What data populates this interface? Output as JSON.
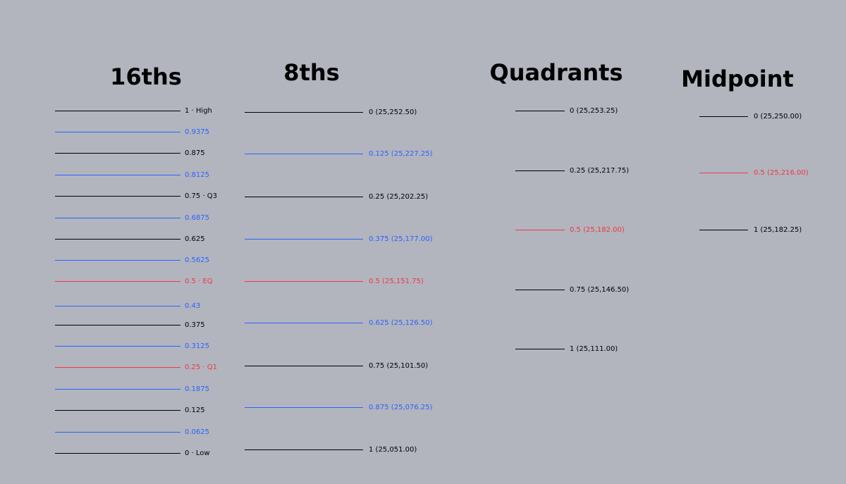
{
  "colors": {
    "background": "#b2b5be",
    "black": "#000000",
    "blue": "#2962ff",
    "red": "#f23645"
  },
  "groups": [
    {
      "id": "16ths",
      "title": "16ths",
      "levels": [
        {
          "label": "1 · High",
          "color": "black"
        },
        {
          "label": "0.9375",
          "color": "blue"
        },
        {
          "label": "0.875",
          "color": "black"
        },
        {
          "label": "0.8125",
          "color": "blue"
        },
        {
          "label": "0.75 · Q3",
          "color": "black"
        },
        {
          "label": "0.6875",
          "color": "blue"
        },
        {
          "label": "0.625",
          "color": "black"
        },
        {
          "label": "0.5625",
          "color": "blue"
        },
        {
          "label": "0.5 · EQ",
          "color": "red"
        },
        {
          "label": "0.43",
          "color": "blue"
        },
        {
          "label": "0.375",
          "color": "black"
        },
        {
          "label": "0.3125",
          "color": "blue"
        },
        {
          "label": "0.25 · Q1",
          "color": "red"
        },
        {
          "label": "0.1875",
          "color": "blue"
        },
        {
          "label": "0.125",
          "color": "black"
        },
        {
          "label": "0.0625",
          "color": "blue"
        },
        {
          "label": "0 · Low",
          "color": "black"
        }
      ]
    },
    {
      "id": "8ths",
      "title": "8ths",
      "levels": [
        {
          "label": "0 (25,252.50)",
          "color": "black"
        },
        {
          "label": "0.125 (25,227.25)",
          "color": "blue"
        },
        {
          "label": "0.25 (25,202.25)",
          "color": "black"
        },
        {
          "label": "0.375 (25,177.00)",
          "color": "blue"
        },
        {
          "label": "0.5 (25,151.75)",
          "color": "red"
        },
        {
          "label": "0.625 (25,126.50)",
          "color": "blue"
        },
        {
          "label": "0.75 (25,101.50)",
          "color": "black"
        },
        {
          "label": "0.875 (25,076.25)",
          "color": "blue"
        },
        {
          "label": "1 (25,051.00)",
          "color": "black"
        }
      ]
    },
    {
      "id": "quadrants",
      "title": "Quadrants",
      "levels": [
        {
          "label": "0 (25,253.25)",
          "color": "black"
        },
        {
          "label": "0.25 (25,217.75)",
          "color": "black"
        },
        {
          "label": "0.5 (25,182.00)",
          "color": "red"
        },
        {
          "label": "0.75 (25,146.50)",
          "color": "black"
        },
        {
          "label": "1 (25,111.00)",
          "color": "black"
        }
      ]
    },
    {
      "id": "midpoint",
      "title": "Midpoint",
      "levels": [
        {
          "label": "0 (25,250.00)",
          "color": "black"
        },
        {
          "label": "0.5 (25,216.00)",
          "color": "red"
        },
        {
          "label": "1 (25,182.25)",
          "color": "black"
        }
      ]
    }
  ]
}
